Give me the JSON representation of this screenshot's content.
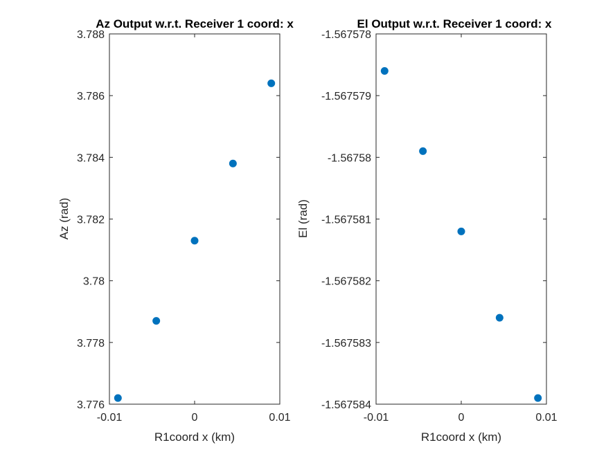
{
  "chart_data": [
    {
      "type": "scatter",
      "title": "Az Output w.r.t. Receiver 1 coord: x",
      "xlabel": "R1coord x (km)",
      "ylabel": "Az (rad)",
      "xlim": [
        -0.01,
        0.01
      ],
      "ylim": [
        3.776,
        3.788
      ],
      "xticks": [
        "-0.01",
        "0",
        "0.01"
      ],
      "yticks": [
        "3.776",
        "3.778",
        "3.78",
        "3.782",
        "3.784",
        "3.786",
        "3.788"
      ],
      "marker_color": "#0072BD",
      "x": [
        -0.009,
        -0.0045,
        0,
        0.0045,
        0.009
      ],
      "y": [
        3.7762,
        3.7787,
        3.7813,
        3.7838,
        3.7864
      ]
    },
    {
      "type": "scatter",
      "title": "El Output w.r.t. Receiver 1 coord: x",
      "xlabel": "R1coord x (km)",
      "ylabel": "El (rad)",
      "xlim": [
        -0.01,
        0.01
      ],
      "ylim": [
        -1.567584,
        -1.567578
      ],
      "xticks": [
        "-0.01",
        "0",
        "0.01"
      ],
      "yticks": [
        "-1.567584",
        "-1.567583",
        "-1.567582",
        "-1.567581",
        "-1.56758",
        "-1.567579",
        "-1.567578"
      ],
      "marker_color": "#0072BD",
      "x": [
        -0.009,
        -0.0045,
        0,
        0.0045,
        0.009
      ],
      "y": [
        -1.5675786,
        -1.5675799,
        -1.5675812,
        -1.5675826,
        -1.5675839
      ]
    }
  ]
}
